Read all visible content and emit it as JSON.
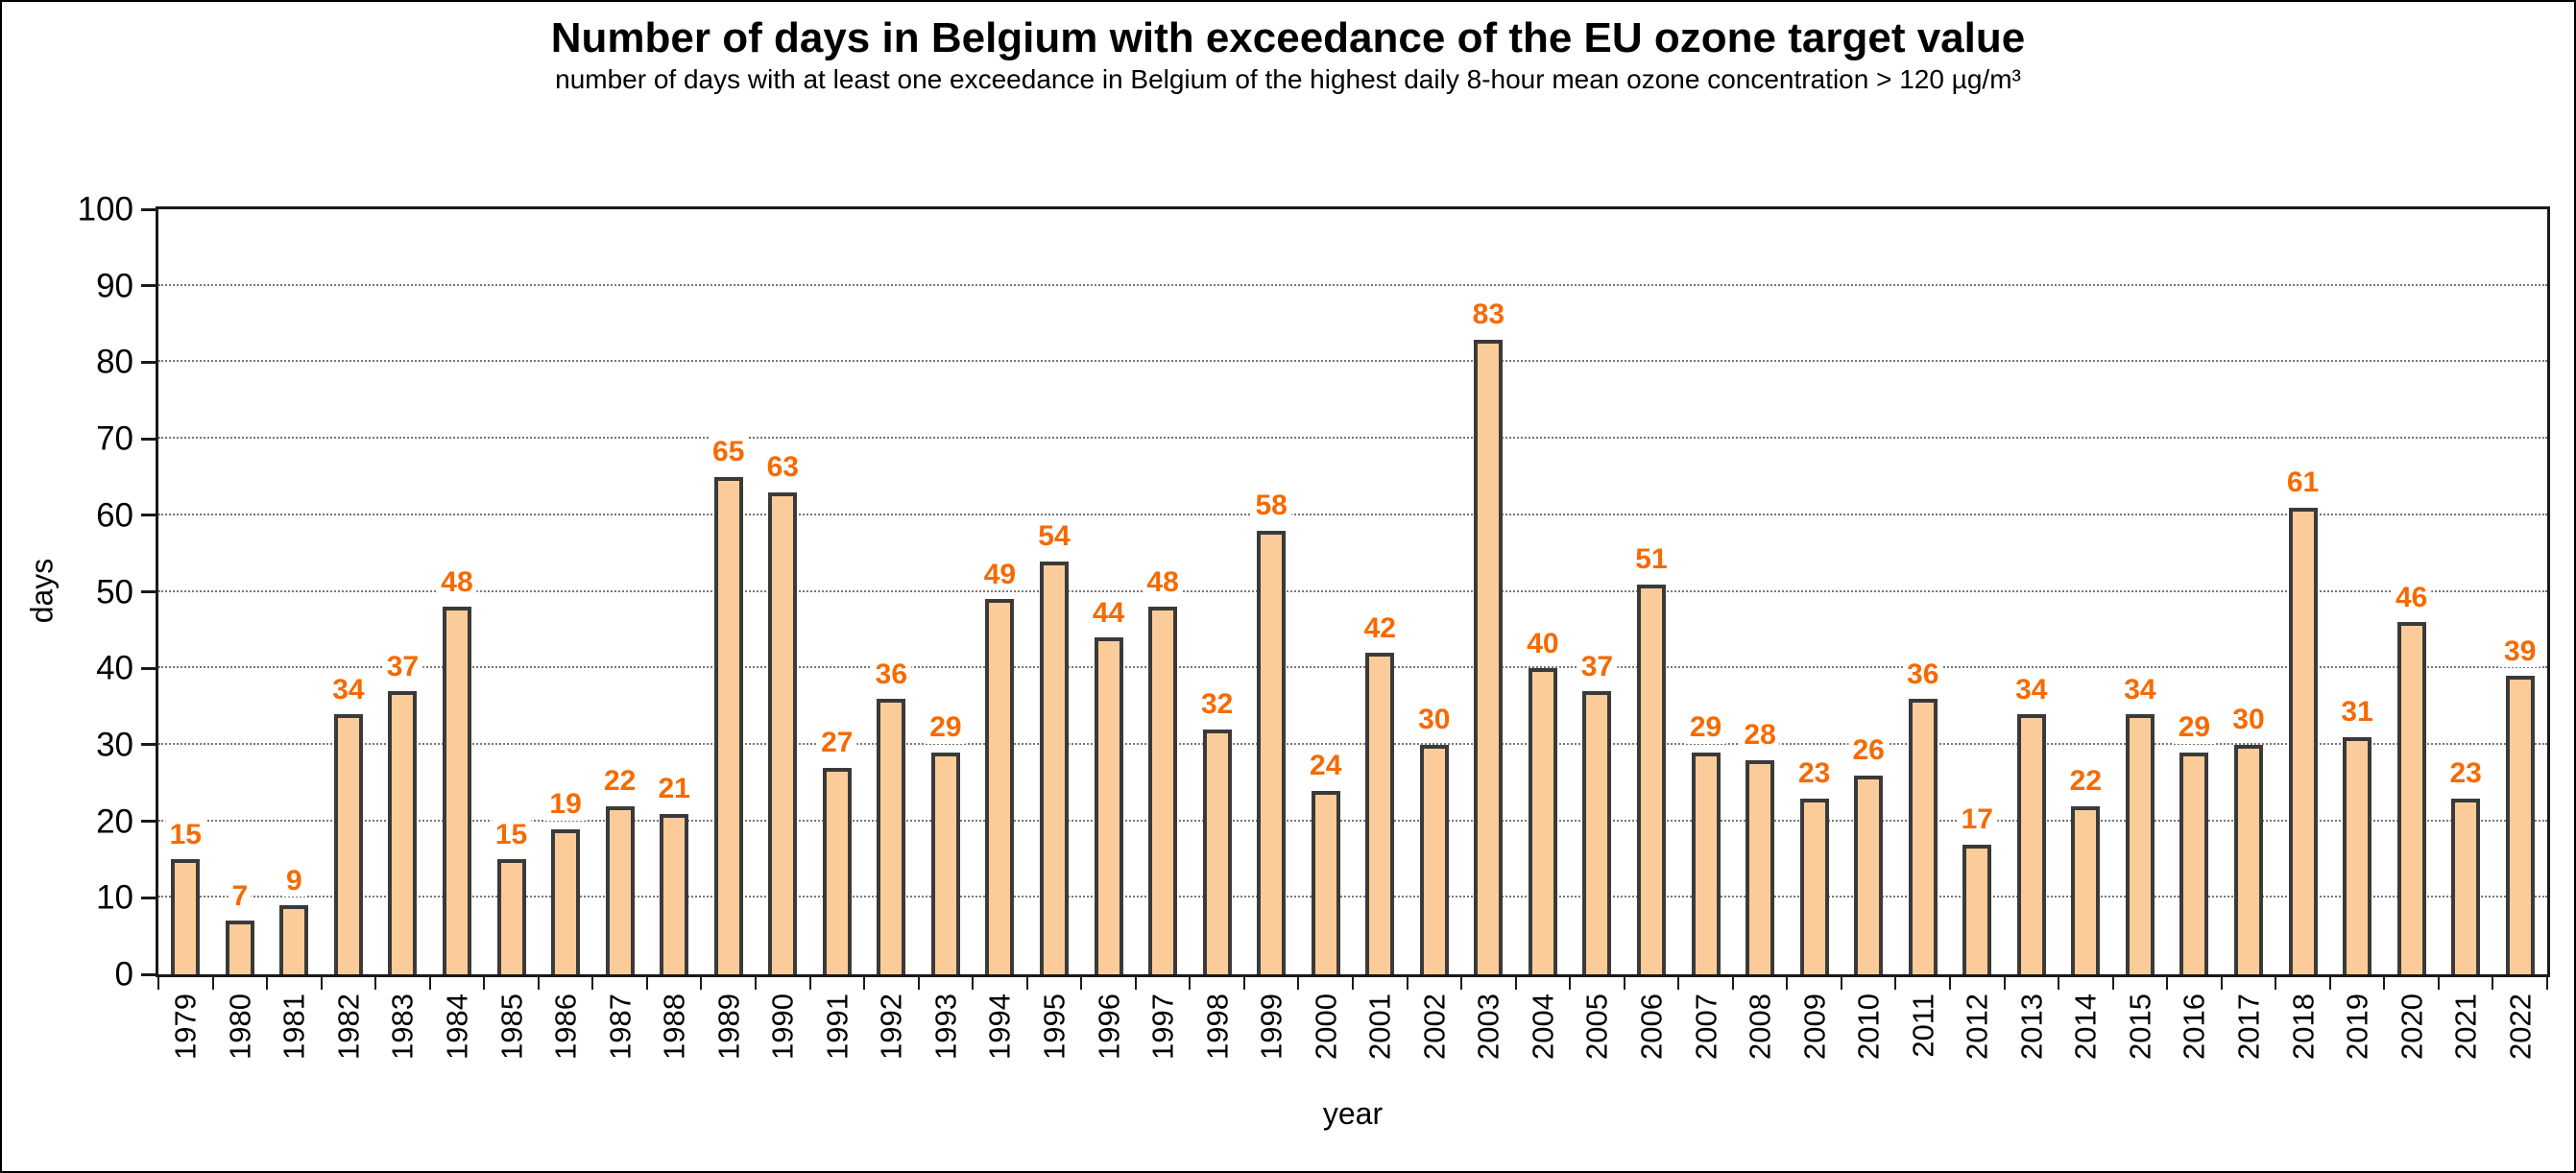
{
  "chart_data": {
    "type": "bar",
    "title": "Number of days in Belgium with exceedance of the EU ozone target value",
    "subtitle": "number of days with at least one exceedance in Belgium of the highest daily 8-hour mean ozone concentration > 120 µg/m³",
    "xlabel": "year",
    "ylabel": "days",
    "ylim": [
      0,
      100
    ],
    "ytick_step": 10,
    "grid": "horizontal dotted lines at 10..90",
    "legend": "none",
    "bar_fill_color": "#FBCC99",
    "bar_border_color": "#3A3A3A",
    "value_label_color": "#F66A00",
    "axis_color": "#1a1a1a",
    "categories": [
      "1979",
      "1980",
      "1981",
      "1982",
      "1983",
      "1984",
      "1985",
      "1986",
      "1987",
      "1988",
      "1989",
      "1990",
      "1991",
      "1992",
      "1993",
      "1994",
      "1995",
      "1996",
      "1997",
      "1998",
      "1999",
      "2000",
      "2001",
      "2002",
      "2003",
      "2004",
      "2005",
      "2006",
      "2007",
      "2008",
      "2009",
      "2010",
      "2011",
      "2012",
      "2013",
      "2014",
      "2015",
      "2016",
      "2017",
      "2018",
      "2019",
      "2020",
      "2021",
      "2022"
    ],
    "values": [
      15,
      7,
      9,
      34,
      37,
      48,
      15,
      19,
      22,
      21,
      65,
      63,
      27,
      36,
      29,
      49,
      54,
      44,
      48,
      32,
      58,
      24,
      42,
      30,
      83,
      40,
      37,
      51,
      29,
      28,
      23,
      26,
      36,
      17,
      34,
      22,
      34,
      29,
      30,
      61,
      31,
      46,
      23,
      39
    ]
  }
}
